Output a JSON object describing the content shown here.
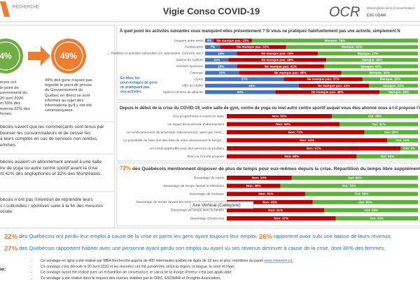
{
  "header": {
    "logo_left": "RECHERCHE",
    "title": "Vigie Conso COVID-19",
    "logo_right": "OCR",
    "logo_right_line1": "Observatoire de la Consommation",
    "logo_right_line2": "ESG UQÀM"
  },
  "stats": {
    "circle_left": "4%",
    "circle_right": "49%",
    "left_lines": [
      "écois ont",
      "le point de",
      "uvernement du",
      "20 avril 2020",
      "m 59% des",
      "evenus 32% des",
      "hones."
    ],
    "right_text": "49% des gens n'ayant pas regardé le point de presse du Gouvernement du Québec en direct se sont informés au sujet des informations qu'il y ont été communiquées."
  },
  "paragraphs": [
    [
      "bécois savent que les commerçants sont tenus par",
      "bourser les consommateurs et de cesser les",
      "à leurs comptes en cas de services non rendus,",
      "emmes."
    ],
    [
      "bécois avaient un abonnement annuel à une salle",
      "tre de yoga ou autre centre sportif avant la crise",
      "nt 42% des anglophones et 32% des Montréalais."
    ],
    [
      "bécois n'ont pas l'intention de reprendre leurs",
      "s / culturelles / sportives suite à la fin des mesures",
      "ociale."
    ]
  ],
  "chart_data": [
    {
      "type": "bar",
      "orientation": "horizontal",
      "stacked": true,
      "title": "À quel point les activités suivantes vous manquent-elles présentement ? Si vous ne pratiquez habituellement pas une activité, simplement N",
      "categories": [
        "Soupers entre amis",
        "Restaurants",
        "...Théâtres et activités culturelles (ex. spectacles, concerts, etc.)",
        "Salons de coiffure",
        "Activités sportives",
        "Cinémas",
        "Gyms",
        "Aller au chalet",
        "Spas et centres de détente"
      ],
      "series": [
        {
          "color": "#4472c4",
          "values": [
            4,
            7,
            15,
            11,
            15,
            16,
            37,
            44,
            33
          ],
          "value_labels": [
            "4%",
            "7%",
            "15%",
            "11%",
            "15%",
            "16%",
            "37%",
            "44%",
            "33%"
          ]
        },
        {
          "color": "#c00000",
          "values": [
            18,
            31,
            38,
            46,
            41,
            48,
            37,
            33,
            49
          ],
          "value_labels": [
            "Ne manque pas: 18%",
            "Ne manque pas: 31%",
            "Ne manque pas: 38%",
            "Ne manque pas: 46%",
            "Ne manque pas: 41%",
            "Ne manque pas: 48%",
            "Ne manque pas: 37%",
            "Ne manque pas: 33%",
            "Ne manque pas: 49%"
          ]
        },
        {
          "color": "#5cb338",
          "values": [
            78,
            62,
            47,
            43,
            44,
            36,
            26,
            23,
            18
          ],
          "value_labels": [
            "Manque: 78%",
            "Manque: 62%",
            "Manque: 47%",
            "Manque: 43%",
            "Manque: 44%",
            "Manque: 36%",
            "Manque: 26%",
            "Manque: 23%",
            "Manque: 18%"
          ]
        }
      ],
      "xlim": [
        0,
        100
      ],
      "annotation": "En bleu, les pourcentages de gens ne pratiquant pas ces activités"
    },
    {
      "type": "bar",
      "orientation": "horizontal",
      "stacked": true,
      "title": "Depuis le début de la crise du COVID-19, votre salle de gym, centre de yoga ou tout autre centre sportif auquel vous êtes abonné vous a-t-il proposé l'une des acti",
      "categories": [
        "Des programmes à suivre en ligne",
        "Un report de la période d'abonnement",
        "Un remboursement de la période d'abonnement, ainsi que l'arrê...",
        "La possibilité de faire don des frais de votre abonnement le temps...",
        "Un crédit applicable pour des services ou produits",
        "Rien ne m'a été proposé"
      ],
      "series": [
        {
          "color": "#c00000",
          "values": [
            55,
            59,
            72,
            84,
            91,
            68
          ],
          "value_labels": [
            "Non: 55%",
            "Non: 59%",
            "Non: 72%",
            "Non: 84%",
            "Non: 91%",
            "Non: 68%"
          ]
        },
        {
          "color": "#5cb338",
          "values": [
            45,
            41,
            28,
            16,
            9,
            32
          ],
          "value_labels": [
            "Oui: 45%",
            "Oui: 41%",
            "Oui: 28%",
            "Oui: 16%",
            "Oui: 9%",
            "Oui: 32%"
          ]
        }
      ],
      "xlim": [
        0,
        100
      ]
    },
    {
      "type": "bar",
      "orientation": "horizontal",
      "stacked": true,
      "title_highlight": "72%",
      "title": " des Québécois mentionnent disposer de plus de temps pour eux-mêmes depuis la crise. Répartition du temps libre supplémenta",
      "categories": [
        "Davantage de repos",
        "Davantage de temps devant la télévision",
        "Davantage de musique",
        "Davantage de temps devant les services de web streaming",
        "Davantage de temps avec la famille",
        "Davantage d'exercices"
      ],
      "series": [
        {
          "color": "#c00000",
          "values": [
            34,
            28,
            41,
            45,
            51,
            57
          ],
          "value_labels": [
            "Non: 34%",
            "Non: 28%",
            "Non: 41%",
            "Non: 45%",
            "Non: 51%",
            "Non: 57%"
          ]
        },
        {
          "color": "#5cb338",
          "values": [
            66,
            72,
            59,
            55,
            49,
            43
          ],
          "value_labels": [
            "Oui: 66%",
            "Oui: 72%",
            "Oui: 59%",
            "Oui: 55%",
            "Oui: 49%",
            "Oui: 43%"
          ]
        }
      ],
      "xlim": [
        0,
        100
      ],
      "tooltip": "Axe Vertical (Catégorie)"
    }
  ],
  "highlights": [
    [
      "22%",
      " des Québécois ont perdu leur emploi à cause de la crise et parmi les gens ayant toujours leur emploi, ",
      "26%",
      " rapportent avoir subi une baisse de leurs revenus."
    ],
    [
      "27%",
      " des Québécois rapportent habiter avec une personne ayant perdu son emploi ou ayant vu ses revenus diminuer à cause de la crise, dont 36% des femmes."
    ]
  ],
  "method": {
    "label": "ie:",
    "notes": [
      "Ce sondage en ligne a été réalisé par MBA Recherche auprès de 400 internautes québécois âgés de 18 ans et plus, membres du panel",
      "Ce sondage s'est déroulé le 20 avril 2020 et les données ont été pondérées selon la région, la langue, le sexe et l'âge;",
      "Ce sondage ayant été réalisé avec un échantillon de convenance, le calcul de la marge d'erreur n'est pas applicable;",
      "Ce sondage a été réalisé dans le respect des normes établies par le CRIC, ESOMAR et l'Insights Association;"
    ],
    "link": "www.mbaweb.ca;"
  }
}
